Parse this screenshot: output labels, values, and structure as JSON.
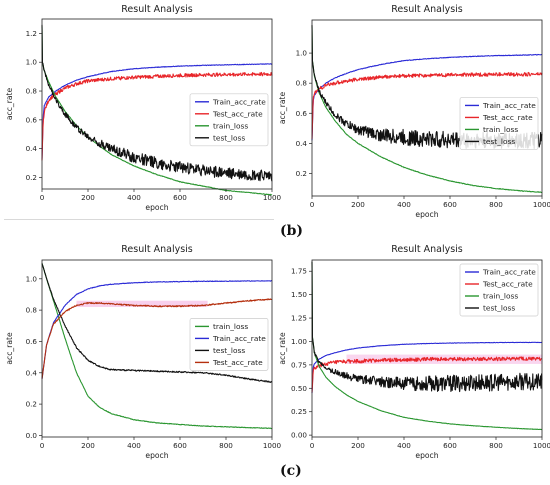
{
  "panel_labels": {
    "b": "(b)",
    "c": "(c)"
  },
  "colors": {
    "train_acc": "#2b2bd6",
    "test_acc": "#e8262a",
    "test_acc_c": "#b5300f",
    "train_loss": "#2a9630",
    "test_loss": "#111111",
    "band": "#f6c4e8"
  },
  "chart_data": [
    {
      "id": "top-left",
      "type": "line",
      "title": "Result Analysis",
      "xlabel": "epoch",
      "ylabel": "acc_rate",
      "xlim": [
        0,
        1000
      ],
      "ylim": [
        0.12,
        1.3
      ],
      "xticks": [
        0,
        200,
        400,
        600,
        800,
        1000
      ],
      "yticks": [
        0.2,
        0.4,
        0.6,
        0.8,
        1.0,
        1.2
      ],
      "legend_position": "center-right",
      "legend": [
        "Train_acc_rate",
        "Test_acc_rate",
        "train_loss",
        "test_loss"
      ],
      "series": [
        {
          "name": "Train_acc_rate",
          "x": [
            0,
            5,
            10,
            30,
            60,
            100,
            150,
            200,
            300,
            400,
            500,
            600,
            700,
            800,
            900,
            1000
          ],
          "values": [
            0.33,
            0.62,
            0.7,
            0.76,
            0.8,
            0.84,
            0.875,
            0.9,
            0.935,
            0.955,
            0.965,
            0.973,
            0.978,
            0.982,
            0.985,
            0.988
          ]
        },
        {
          "name": "Test_acc_rate",
          "x": [
            0,
            5,
            10,
            30,
            60,
            100,
            150,
            200,
            300,
            400,
            500,
            600,
            700,
            800,
            900,
            1000
          ],
          "values": [
            0.33,
            0.58,
            0.66,
            0.74,
            0.78,
            0.82,
            0.85,
            0.87,
            0.885,
            0.895,
            0.902,
            0.908,
            0.912,
            0.915,
            0.917,
            0.918
          ]
        },
        {
          "name": "train_loss",
          "x": [
            0,
            2,
            10,
            30,
            60,
            100,
            150,
            200,
            300,
            400,
            500,
            600,
            700,
            800,
            900,
            1000
          ],
          "values": [
            1.25,
            1.0,
            0.94,
            0.86,
            0.76,
            0.66,
            0.56,
            0.48,
            0.36,
            0.28,
            0.22,
            0.17,
            0.14,
            0.11,
            0.095,
            0.08
          ]
        },
        {
          "name": "test_loss",
          "x": [
            0,
            2,
            10,
            30,
            60,
            100,
            150,
            200,
            300,
            400,
            500,
            600,
            700,
            800,
            900,
            1000
          ],
          "values": [
            1.25,
            1.0,
            0.94,
            0.84,
            0.74,
            0.64,
            0.55,
            0.48,
            0.4,
            0.34,
            0.3,
            0.27,
            0.25,
            0.23,
            0.22,
            0.21
          ]
        }
      ]
    },
    {
      "id": "top-right",
      "type": "line",
      "title": "Result Analysis",
      "xlabel": "epoch",
      "ylabel": "acc_rate",
      "xlim": [
        0,
        1000
      ],
      "ylim": [
        0.05,
        1.22
      ],
      "xticks": [
        0,
        200,
        400,
        600,
        800,
        1000
      ],
      "yticks": [
        0.2,
        0.4,
        0.6,
        0.8,
        1.0
      ],
      "legend_position": "center-right",
      "legend": [
        "Train_acc_rate",
        "Test_acc_rate",
        "train_loss",
        "test_loss"
      ],
      "series": [
        {
          "name": "Train_acc_rate",
          "x": [
            0,
            5,
            10,
            30,
            60,
            100,
            150,
            200,
            300,
            400,
            500,
            600,
            700,
            800,
            900,
            1000
          ],
          "values": [
            0.42,
            0.68,
            0.72,
            0.76,
            0.8,
            0.835,
            0.865,
            0.89,
            0.925,
            0.95,
            0.962,
            0.972,
            0.978,
            0.983,
            0.986,
            0.99
          ]
        },
        {
          "name": "Test_acc_rate",
          "x": [
            0,
            5,
            10,
            30,
            60,
            100,
            150,
            200,
            300,
            400,
            500,
            600,
            700,
            800,
            900,
            1000
          ],
          "values": [
            0.42,
            0.7,
            0.73,
            0.76,
            0.785,
            0.8,
            0.815,
            0.825,
            0.84,
            0.848,
            0.852,
            0.855,
            0.857,
            0.858,
            0.859,
            0.86
          ]
        },
        {
          "name": "train_loss",
          "x": [
            0,
            2,
            10,
            30,
            60,
            100,
            150,
            200,
            300,
            400,
            500,
            600,
            700,
            800,
            900,
            1000
          ],
          "values": [
            1.18,
            0.95,
            0.85,
            0.74,
            0.64,
            0.55,
            0.46,
            0.4,
            0.31,
            0.24,
            0.19,
            0.15,
            0.12,
            0.1,
            0.085,
            0.075
          ]
        },
        {
          "name": "test_loss",
          "x": [
            0,
            2,
            10,
            30,
            60,
            100,
            150,
            200,
            300,
            400,
            500,
            600,
            700,
            800,
            900,
            1000
          ],
          "values": [
            1.18,
            0.95,
            0.85,
            0.75,
            0.67,
            0.59,
            0.53,
            0.49,
            0.455,
            0.44,
            0.43,
            0.425,
            0.42,
            0.42,
            0.42,
            0.42
          ]
        }
      ]
    },
    {
      "id": "bottom-left",
      "type": "line",
      "title": "Result Analysis",
      "xlabel": "epoch",
      "ylabel": "acc_rate",
      "xlim": [
        0,
        1000
      ],
      "ylim": [
        -0.01,
        1.12
      ],
      "xticks": [
        0,
        200,
        400,
        600,
        800,
        1000
      ],
      "yticks": [
        0.0,
        0.2,
        0.4,
        0.6,
        0.8,
        1.0
      ],
      "legend_position": "center-right",
      "legend": [
        "train_loss",
        "Train_acc_rate",
        "test_loss",
        "Test_acc_rate"
      ],
      "series": [
        {
          "name": "train_loss",
          "x": [
            0,
            20,
            50,
            100,
            150,
            200,
            250,
            300,
            400,
            500,
            600,
            700,
            800,
            900,
            1000
          ],
          "values": [
            1.1,
            1.0,
            0.86,
            0.62,
            0.4,
            0.25,
            0.18,
            0.14,
            0.1,
            0.08,
            0.07,
            0.06,
            0.055,
            0.05,
            0.045
          ]
        },
        {
          "name": "Train_acc_rate",
          "x": [
            0,
            20,
            50,
            100,
            150,
            200,
            250,
            300,
            400,
            500,
            600,
            700,
            800,
            900,
            1000
          ],
          "values": [
            0.36,
            0.58,
            0.72,
            0.83,
            0.9,
            0.935,
            0.955,
            0.965,
            0.975,
            0.98,
            0.982,
            0.984,
            0.985,
            0.986,
            0.987
          ]
        },
        {
          "name": "test_loss",
          "x": [
            0,
            20,
            50,
            100,
            150,
            200,
            250,
            300,
            400,
            500,
            600,
            700,
            800,
            900,
            1000
          ],
          "values": [
            1.1,
            1.0,
            0.87,
            0.7,
            0.56,
            0.48,
            0.44,
            0.42,
            0.415,
            0.41,
            0.405,
            0.4,
            0.385,
            0.36,
            0.34
          ]
        },
        {
          "name": "Test_acc_rate",
          "x": [
            0,
            20,
            50,
            100,
            150,
            200,
            250,
            300,
            400,
            500,
            600,
            700,
            800,
            900,
            1000
          ],
          "values": [
            0.36,
            0.58,
            0.71,
            0.79,
            0.83,
            0.845,
            0.845,
            0.84,
            0.83,
            0.825,
            0.825,
            0.83,
            0.845,
            0.86,
            0.87
          ]
        }
      ]
    },
    {
      "id": "bottom-right",
      "type": "line",
      "title": "Result Analysis",
      "xlabel": "epoch",
      "ylabel": "acc_rate",
      "xlim": [
        0,
        1000
      ],
      "ylim": [
        -0.02,
        1.87
      ],
      "xticks": [
        0,
        200,
        400,
        600,
        800,
        1000
      ],
      "yticks": [
        0.0,
        0.25,
        0.5,
        0.75,
        1.0,
        1.25,
        1.5,
        1.75
      ],
      "ytick_labels": [
        "0.00",
        "0.25",
        "0.50",
        "0.75",
        "1.00",
        "1.25",
        "1.50",
        "1.75"
      ],
      "legend_position": "top-right",
      "legend": [
        "Train_acc_rate",
        "Test_acc_rate",
        "train_loss",
        "test_loss"
      ],
      "series": [
        {
          "name": "Train_acc_rate",
          "x": [
            0,
            5,
            10,
            30,
            60,
            100,
            150,
            200,
            300,
            400,
            500,
            600,
            700,
            800,
            900,
            1000
          ],
          "values": [
            0.45,
            0.72,
            0.76,
            0.81,
            0.85,
            0.88,
            0.91,
            0.93,
            0.955,
            0.97,
            0.978,
            0.983,
            0.986,
            0.988,
            0.99,
            0.99
          ]
        },
        {
          "name": "Test_acc_rate",
          "x": [
            0,
            5,
            10,
            30,
            60,
            100,
            150,
            200,
            300,
            400,
            500,
            600,
            700,
            800,
            900,
            1000
          ],
          "values": [
            0.45,
            0.68,
            0.71,
            0.74,
            0.76,
            0.775,
            0.785,
            0.79,
            0.8,
            0.805,
            0.81,
            0.812,
            0.815,
            0.815,
            0.815,
            0.815
          ]
        },
        {
          "name": "train_loss",
          "x": [
            0,
            2,
            10,
            30,
            60,
            100,
            150,
            200,
            300,
            400,
            500,
            600,
            700,
            800,
            900,
            1000
          ],
          "values": [
            1.85,
            1.05,
            0.88,
            0.74,
            0.62,
            0.52,
            0.43,
            0.36,
            0.26,
            0.19,
            0.15,
            0.12,
            0.1,
            0.085,
            0.07,
            0.06
          ]
        },
        {
          "name": "test_loss",
          "x": [
            0,
            2,
            10,
            30,
            60,
            100,
            150,
            200,
            300,
            400,
            500,
            600,
            700,
            800,
            900,
            1000
          ],
          "values": [
            1.85,
            1.05,
            0.88,
            0.78,
            0.72,
            0.67,
            0.63,
            0.6,
            0.57,
            0.55,
            0.55,
            0.55,
            0.56,
            0.56,
            0.57,
            0.57
          ]
        }
      ]
    }
  ]
}
